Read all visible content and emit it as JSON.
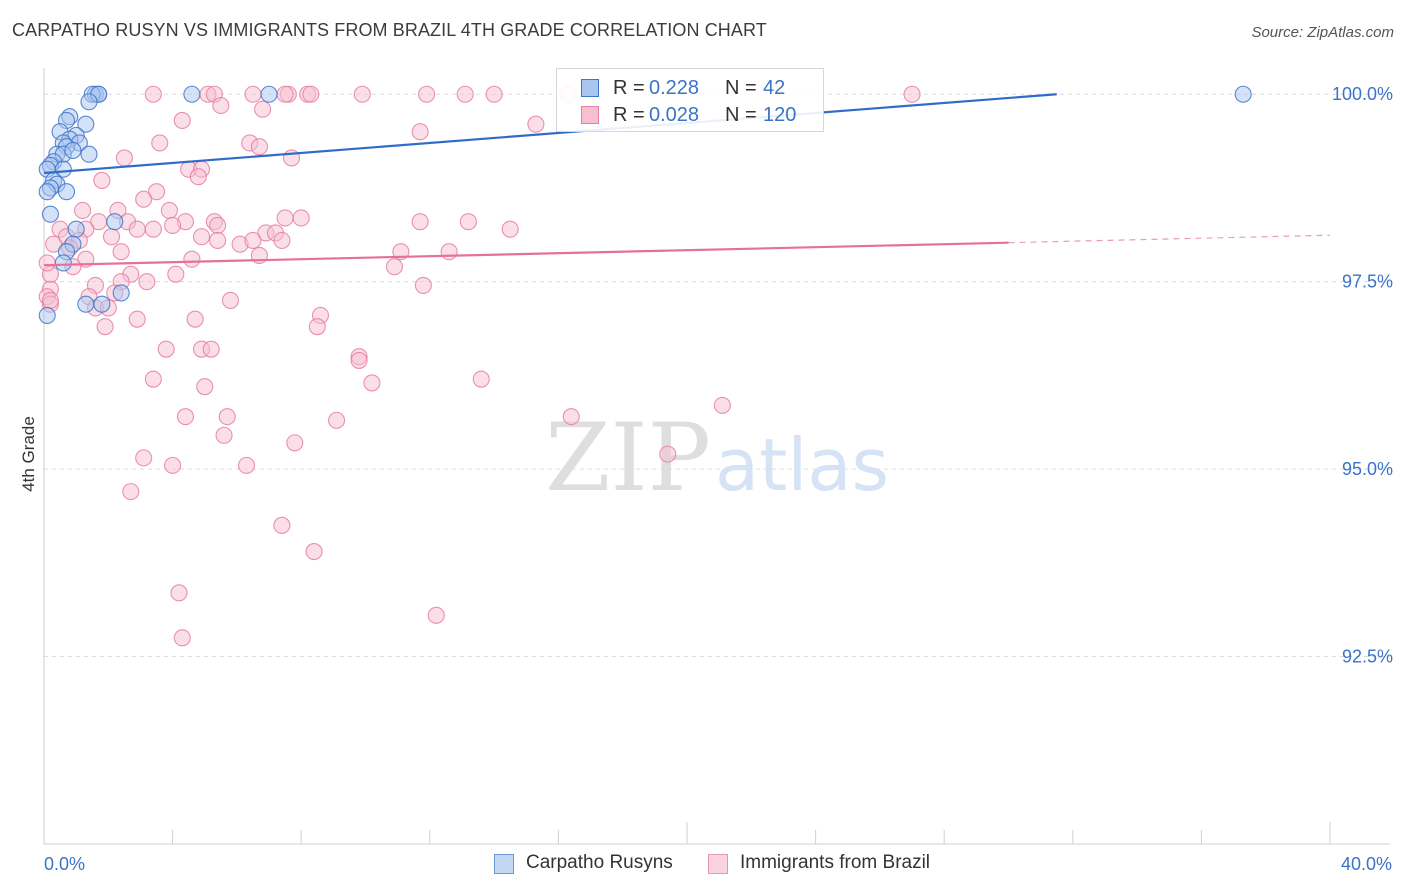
{
  "title": "CARPATHO RUSYN VS IMMIGRANTS FROM BRAZIL 4TH GRADE CORRELATION CHART",
  "source": "Source: ZipAtlas.com",
  "watermark": {
    "zip": "ZIP",
    "atlas": "atlas"
  },
  "colors": {
    "blue_fill": "#a9c6ef",
    "blue_stroke": "#3e74c9",
    "blue_line": "#2f6cc8",
    "pink_fill": "#f6c0d1",
    "pink_stroke": "#e87ea0",
    "pink_line": "#e5709a",
    "grid": "#dcdcdc",
    "tick_label": "#3a73c8",
    "axis": "#cfcfcf"
  },
  "legend_top": [
    {
      "r_label": "R =",
      "r_value": "0.228",
      "n_label": "N =",
      "n_value": "42",
      "series": "blue"
    },
    {
      "r_label": "R =",
      "r_value": "0.028",
      "n_label": "N =",
      "n_value": "120",
      "series": "pink"
    }
  ],
  "legend_bottom": [
    {
      "label": "Carpatho Rusyns",
      "series": "blue"
    },
    {
      "label": "Immigrants from Brazil",
      "series": "pink"
    }
  ],
  "chart_data": {
    "type": "scatter",
    "title": "CARPATHO RUSYN VS IMMIGRANTS FROM BRAZIL 4TH GRADE CORRELATION CHART",
    "xlabel": "",
    "ylabel": "4th Grade",
    "xlim": [
      0,
      40
    ],
    "ylim": [
      90.0,
      100.35
    ],
    "x_tick_labels": [
      {
        "value": 0,
        "label": "0.0%"
      },
      {
        "value": 40,
        "label": "40.0%"
      }
    ],
    "y_tick_labels": [
      {
        "value": 100.0,
        "label": "100.0%"
      },
      {
        "value": 97.5,
        "label": "97.5%"
      },
      {
        "value": 95.0,
        "label": "95.0%"
      },
      {
        "value": 92.5,
        "label": "92.5%"
      }
    ],
    "series": [
      {
        "name": "Carpatho Rusyns",
        "key": "blue",
        "R": 0.228,
        "N": 42,
        "trend": {
          "x0": 0,
          "y0": 98.95,
          "x1": 31.5,
          "y1": 100.0
        },
        "points": [
          [
            1.6,
            100.0
          ],
          [
            1.7,
            100.0
          ],
          [
            1.5,
            100.0
          ],
          [
            1.7,
            100.0
          ],
          [
            4.6,
            100.0
          ],
          [
            7.0,
            100.0
          ],
          [
            37.3,
            100.0
          ],
          [
            1.4,
            99.9
          ],
          [
            0.8,
            99.7
          ],
          [
            0.7,
            99.65
          ],
          [
            1.3,
            99.6
          ],
          [
            0.5,
            99.5
          ],
          [
            1.0,
            99.45
          ],
          [
            0.8,
            99.4
          ],
          [
            0.6,
            99.35
          ],
          [
            1.1,
            99.35
          ],
          [
            0.7,
            99.3
          ],
          [
            0.4,
            99.2
          ],
          [
            0.6,
            99.2
          ],
          [
            0.9,
            99.25
          ],
          [
            1.4,
            99.2
          ],
          [
            0.3,
            99.1
          ],
          [
            0.2,
            99.05
          ],
          [
            0.6,
            99.0
          ],
          [
            0.1,
            99.0
          ],
          [
            0.3,
            98.85
          ],
          [
            0.4,
            98.8
          ],
          [
            0.2,
            98.75
          ],
          [
            0.1,
            98.7
          ],
          [
            0.7,
            98.7
          ],
          [
            0.2,
            98.4
          ],
          [
            2.2,
            98.3
          ],
          [
            1.0,
            98.2
          ],
          [
            0.9,
            98.0
          ],
          [
            0.7,
            97.9
          ],
          [
            0.6,
            97.75
          ],
          [
            2.4,
            97.35
          ],
          [
            1.3,
            97.2
          ],
          [
            1.8,
            97.2
          ],
          [
            0.1,
            97.05
          ]
        ]
      },
      {
        "name": "Immigrants from Brazil",
        "key": "pink",
        "R": 0.028,
        "N": 120,
        "trend": {
          "x0": 0,
          "y0": 97.72,
          "x1": 30.0,
          "y1": 98.02
        },
        "trend_dashed": {
          "x0": 30.0,
          "y0": 98.02,
          "x1": 40.0,
          "y1": 98.12
        },
        "points": [
          [
            3.4,
            100.0
          ],
          [
            5.1,
            100.0
          ],
          [
            5.3,
            100.0
          ],
          [
            6.5,
            100.0
          ],
          [
            7.6,
            100.0
          ],
          [
            7.5,
            100.0
          ],
          [
            8.2,
            100.0
          ],
          [
            8.3,
            100.0
          ],
          [
            9.9,
            100.0
          ],
          [
            11.9,
            100.0
          ],
          [
            13.1,
            100.0
          ],
          [
            14.0,
            100.0
          ],
          [
            16.3,
            100.0
          ],
          [
            27.0,
            100.0
          ],
          [
            6.8,
            99.8
          ],
          [
            5.5,
            99.85
          ],
          [
            4.3,
            99.65
          ],
          [
            15.3,
            99.6
          ],
          [
            11.7,
            99.5
          ],
          [
            3.6,
            99.35
          ],
          [
            6.4,
            99.35
          ],
          [
            6.7,
            99.3
          ],
          [
            7.7,
            99.15
          ],
          [
            2.5,
            99.15
          ],
          [
            4.5,
            99.0
          ],
          [
            4.9,
            99.0
          ],
          [
            4.8,
            98.9
          ],
          [
            1.8,
            98.85
          ],
          [
            3.5,
            98.7
          ],
          [
            3.1,
            98.6
          ],
          [
            1.2,
            98.45
          ],
          [
            2.3,
            98.45
          ],
          [
            3.9,
            98.45
          ],
          [
            7.5,
            98.35
          ],
          [
            8.0,
            98.35
          ],
          [
            14.5,
            98.2
          ],
          [
            2.6,
            98.3
          ],
          [
            1.7,
            98.3
          ],
          [
            4.4,
            98.3
          ],
          [
            5.3,
            98.3
          ],
          [
            11.7,
            98.3
          ],
          [
            13.2,
            98.3
          ],
          [
            0.5,
            98.2
          ],
          [
            1.3,
            98.2
          ],
          [
            2.9,
            98.2
          ],
          [
            3.4,
            98.2
          ],
          [
            4.0,
            98.25
          ],
          [
            5.4,
            98.25
          ],
          [
            6.9,
            98.15
          ],
          [
            7.2,
            98.15
          ],
          [
            0.7,
            98.1
          ],
          [
            1.1,
            98.05
          ],
          [
            2.1,
            98.1
          ],
          [
            4.9,
            98.1
          ],
          [
            6.1,
            98.0
          ],
          [
            0.3,
            98.0
          ],
          [
            5.4,
            98.05
          ],
          [
            6.5,
            98.05
          ],
          [
            7.4,
            98.05
          ],
          [
            0.8,
            97.95
          ],
          [
            2.4,
            97.9
          ],
          [
            11.1,
            97.9
          ],
          [
            12.6,
            97.9
          ],
          [
            1.3,
            97.8
          ],
          [
            4.6,
            97.8
          ],
          [
            6.7,
            97.85
          ],
          [
            0.9,
            97.7
          ],
          [
            10.9,
            97.7
          ],
          [
            4.1,
            97.6
          ],
          [
            2.7,
            97.6
          ],
          [
            1.6,
            97.45
          ],
          [
            3.2,
            97.5
          ],
          [
            11.8,
            97.45
          ],
          [
            2.4,
            97.5
          ],
          [
            0.2,
            97.4
          ],
          [
            0.1,
            97.3
          ],
          [
            1.4,
            97.3
          ],
          [
            2.2,
            97.35
          ],
          [
            5.8,
            97.25
          ],
          [
            0.2,
            97.2
          ],
          [
            1.6,
            97.15
          ],
          [
            2.0,
            97.15
          ],
          [
            2.9,
            97.0
          ],
          [
            4.7,
            97.0
          ],
          [
            8.6,
            97.05
          ],
          [
            8.5,
            96.9
          ],
          [
            1.9,
            96.9
          ],
          [
            3.8,
            96.6
          ],
          [
            4.9,
            96.6
          ],
          [
            5.2,
            96.6
          ],
          [
            9.8,
            96.5
          ],
          [
            9.8,
            96.45
          ],
          [
            3.4,
            96.2
          ],
          [
            10.2,
            96.15
          ],
          [
            13.6,
            96.2
          ],
          [
            5.0,
            96.1
          ],
          [
            21.1,
            95.85
          ],
          [
            4.4,
            95.7
          ],
          [
            5.7,
            95.7
          ],
          [
            9.1,
            95.65
          ],
          [
            16.4,
            95.7
          ],
          [
            5.6,
            95.45
          ],
          [
            7.8,
            95.35
          ],
          [
            3.1,
            95.15
          ],
          [
            19.4,
            95.2
          ],
          [
            4.0,
            95.05
          ],
          [
            6.3,
            95.05
          ],
          [
            2.7,
            94.7
          ],
          [
            7.4,
            94.25
          ],
          [
            8.4,
            93.9
          ],
          [
            4.2,
            93.35
          ],
          [
            12.2,
            93.05
          ],
          [
            4.3,
            92.75
          ],
          [
            0.2,
            97.25
          ],
          [
            0.2,
            97.6
          ],
          [
            0.1,
            97.75
          ]
        ]
      }
    ]
  }
}
